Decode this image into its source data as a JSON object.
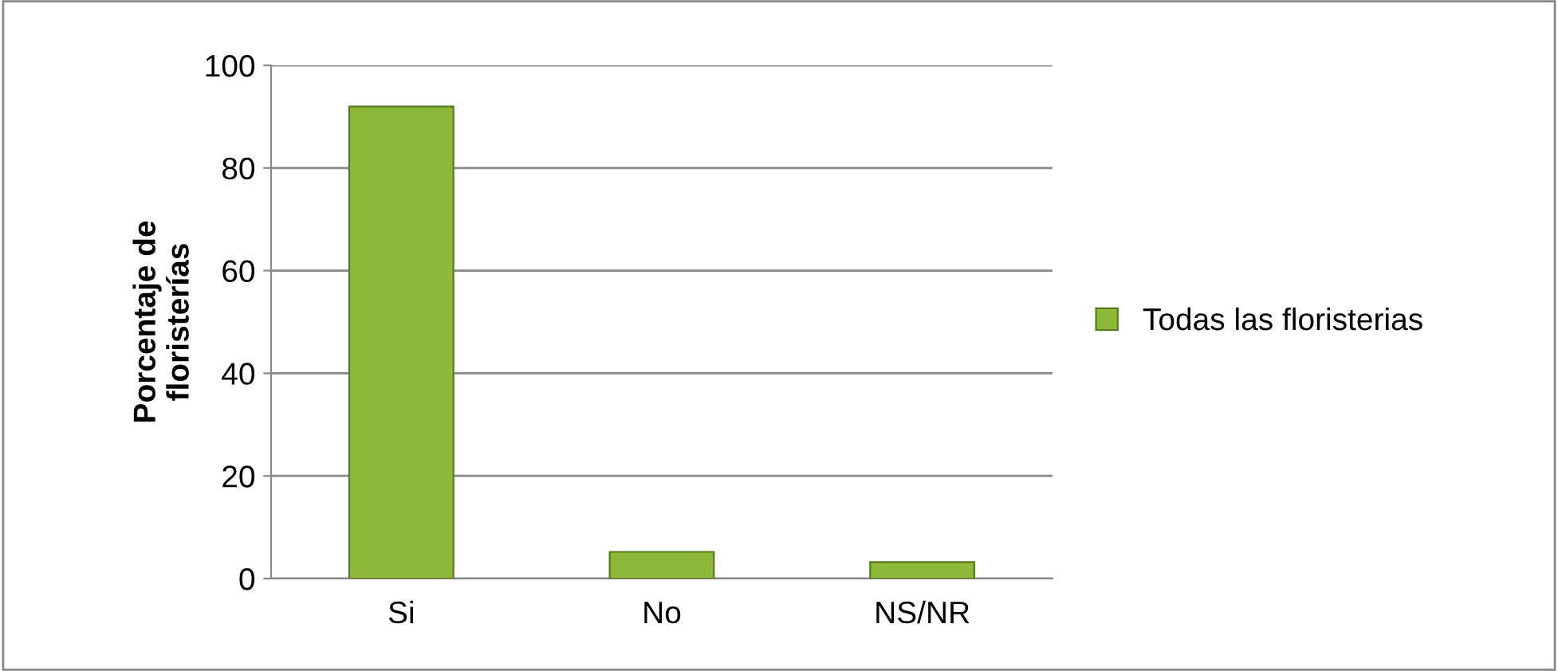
{
  "chart_data": {
    "type": "bar",
    "ylabel": "Porcentaje de\nfloristerías",
    "categories": [
      "Si",
      "No",
      "NS/NR"
    ],
    "series": [
      {
        "name": "Todas las floristerias",
        "color": "#8db83a",
        "values": [
          92,
          5.2,
          3.2
        ]
      }
    ],
    "ylim": [
      0,
      100
    ],
    "yticks": [
      0,
      20,
      40,
      60,
      80,
      100
    ],
    "grid": "y",
    "legend": "right"
  }
}
